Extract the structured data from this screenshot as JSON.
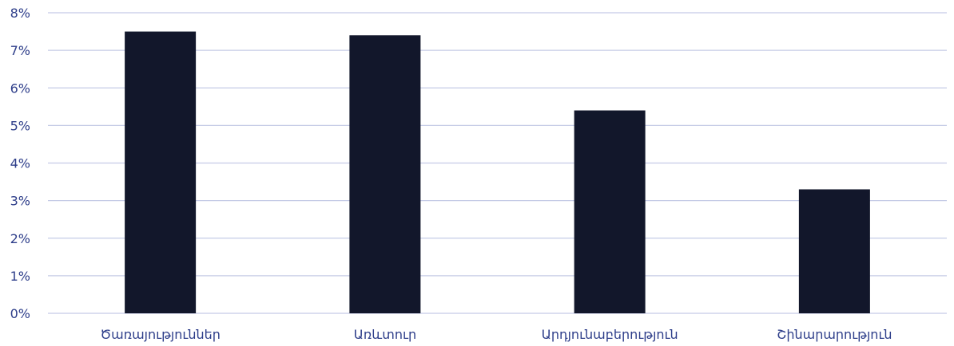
{
  "chart_data": {
    "type": "bar",
    "title": "",
    "xlabel": "",
    "ylabel": "",
    "categories": [
      "Ծառայություններ",
      "Առևտուր",
      "Արդյունաբերություն",
      "Շինարարություն"
    ],
    "values": [
      7.5,
      7.4,
      5.4,
      3.3
    ],
    "unit": "%",
    "ylim": [
      0,
      8
    ],
    "yticks": [
      0,
      1,
      2,
      3,
      4,
      5,
      6,
      7,
      8
    ],
    "ytick_labels": [
      "0%",
      "1%",
      "2%",
      "3%",
      "4%",
      "5%",
      "6%",
      "7%",
      "8%"
    ],
    "grid": true,
    "legend": "none",
    "colors": {
      "bar": "#12172b",
      "grid": "#c5cbe6",
      "axis_text": "#2e3e8a"
    }
  }
}
